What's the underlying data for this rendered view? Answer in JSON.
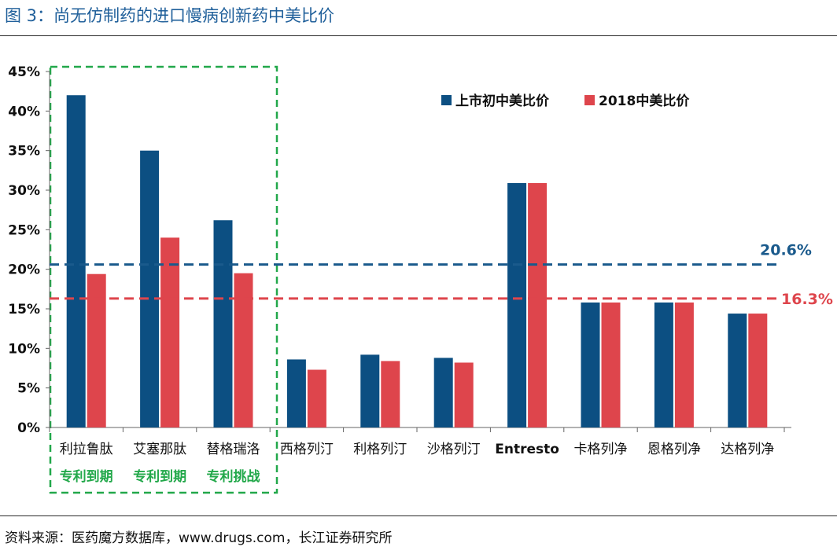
{
  "figure_title": "图 3：尚无仿制药的进口慢病创新药中美比价",
  "source": "资料来源：医药魔方数据库，www.drugs.com，长江证券研究所",
  "colors": {
    "series1": "#0c4f82",
    "series2": "#de454c",
    "highlight": "#22a84a",
    "title": "#1f5f9a"
  },
  "chart_data": {
    "type": "bar",
    "categories": [
      "利拉鲁肽",
      "艾塞那肽",
      "替格瑞洛",
      "西格列汀",
      "利格列汀",
      "沙格列汀",
      "Entresto",
      "卡格列净",
      "恩格列净",
      "达格列净"
    ],
    "series": [
      {
        "name": "上市初中美比价",
        "values": [
          42,
          35,
          26.2,
          8.6,
          9.2,
          8.8,
          30.9,
          15.8,
          15.8,
          14.4
        ]
      },
      {
        "name": "2018中美比价",
        "values": [
          19.4,
          24,
          19.5,
          7.3,
          8.4,
          8.2,
          30.9,
          15.8,
          15.8,
          14.4
        ]
      }
    ],
    "ylim": [
      0,
      45
    ],
    "yticks": [
      "0%",
      "5%",
      "10%",
      "15%",
      "20%",
      "25%",
      "30%",
      "35%",
      "40%",
      "45%"
    ],
    "grid": false,
    "legend_position": "top-right",
    "reference_lines": [
      {
        "value": 20.6,
        "label": "20.6%",
        "color": "#1a5a8c"
      },
      {
        "value": 16.3,
        "label": "16.3%",
        "color": "#de454c"
      }
    ],
    "category_notes": [
      "专利到期",
      "专利到期",
      "专利挑战"
    ]
  }
}
